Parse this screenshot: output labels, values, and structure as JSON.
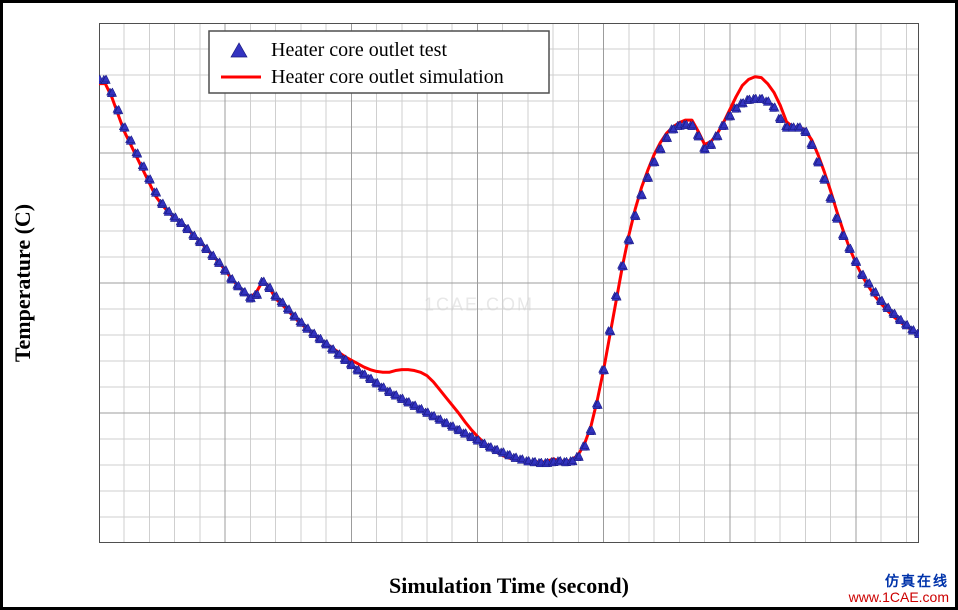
{
  "chart": {
    "type": "line",
    "xlabel": "Simulation Time (second)",
    "ylabel": "Temperature (C)",
    "label_fontsize": 22,
    "label_fontweight": "bold",
    "tick_fontsize": 20,
    "xlim": [
      0,
      650
    ],
    "ylim": [
      60,
      120
    ],
    "xtick_major": [
      0,
      100,
      200,
      300,
      400,
      500,
      600
    ],
    "xtick_minor_step": 20,
    "ytick_major": [
      60,
      75,
      90,
      105,
      120
    ],
    "ytick_minor_step": 3,
    "background_color": "#ffffff",
    "grid_major_color": "#9c9c9c",
    "grid_minor_color": "#cfcfcf",
    "plot_border_color": "#4f4f4f",
    "plot_border_width": 2,
    "legend": {
      "position": "top",
      "border_color": "#4f4f4f",
      "background_color": "#ffffff",
      "items": [
        {
          "label": "Heater core outlet test",
          "marker": "triangle",
          "color": "#3333c0",
          "line": "none"
        },
        {
          "label": "Heater core outlet simulation",
          "marker": "none",
          "color": "#ff0000",
          "line": "solid",
          "line_width": 3
        }
      ]
    },
    "series": [
      {
        "name": "Heater core outlet simulation",
        "type": "line",
        "color": "#ff0000",
        "line_width": 3,
        "x": [
          0,
          5,
          10,
          15,
          20,
          25,
          30,
          35,
          40,
          45,
          50,
          55,
          60,
          65,
          70,
          75,
          80,
          85,
          90,
          95,
          100,
          105,
          110,
          115,
          120,
          125,
          130,
          135,
          140,
          145,
          150,
          155,
          160,
          165,
          170,
          175,
          180,
          185,
          190,
          195,
          200,
          205,
          210,
          215,
          220,
          225,
          230,
          235,
          240,
          245,
          250,
          255,
          260,
          265,
          270,
          275,
          280,
          285,
          290,
          295,
          300,
          305,
          310,
          315,
          320,
          325,
          330,
          335,
          340,
          345,
          350,
          355,
          360,
          365,
          370,
          375,
          380,
          385,
          390,
          395,
          400,
          405,
          410,
          415,
          420,
          425,
          430,
          435,
          440,
          445,
          450,
          455,
          460,
          465,
          470,
          475,
          480,
          485,
          490,
          495,
          500,
          505,
          510,
          515,
          520,
          525,
          530,
          535,
          540,
          545,
          550,
          555,
          560,
          565,
          570,
          575,
          580,
          585,
          590,
          595,
          600,
          605,
          610,
          615,
          620,
          625,
          630,
          635,
          640,
          645,
          650
        ],
        "y": [
          113,
          113,
          111.5,
          109.5,
          107.5,
          106,
          104.5,
          103,
          101.5,
          100,
          99,
          98.2,
          97.5,
          97,
          96.3,
          95.5,
          94.8,
          94,
          93.2,
          92.4,
          91.5,
          90.5,
          89.7,
          89,
          88.3,
          89,
          90.3,
          89.5,
          88.2,
          87.5,
          86.8,
          86,
          85.3,
          84.7,
          84,
          83.5,
          83,
          82.5,
          82,
          81.5,
          81.1,
          80.7,
          80.3,
          80,
          79.8,
          79.7,
          79.7,
          79.9,
          80,
          80,
          79.9,
          79.7,
          79.3,
          78.6,
          77.7,
          76.8,
          75.9,
          75,
          74,
          73.1,
          72.3,
          71.6,
          71,
          70.5,
          70.1,
          69.8,
          69.6,
          69.5,
          69.4,
          69.4,
          69.3,
          69.4,
          69.7,
          69.5,
          69.4,
          69.6,
          70.2,
          71.5,
          73.5,
          76.5,
          80,
          84,
          88,
          92,
          95.5,
          98.5,
          101,
          103,
          104.8,
          106.2,
          107.3,
          108,
          108.5,
          108.8,
          108.8,
          107.5,
          106,
          106.3,
          107.2,
          108.5,
          110,
          111.5,
          112.8,
          113.5,
          113.8,
          113.7,
          113,
          112,
          110.5,
          108.6,
          108,
          108,
          107.6,
          106.5,
          104.8,
          102.8,
          100.6,
          98.2,
          96,
          94,
          92.3,
          90.8,
          89.6,
          88.5,
          87.6,
          86.8,
          86.1,
          85.5,
          85,
          84.5,
          84.2
        ]
      },
      {
        "name": "Heater core outlet test",
        "type": "scatter",
        "marker": "triangle",
        "marker_size": 7,
        "color": "#3333c0",
        "fill_color": "#3333c0",
        "stroke_color": "#1a1a80",
        "x": [
          0,
          5,
          10,
          15,
          20,
          25,
          30,
          35,
          40,
          45,
          50,
          55,
          60,
          65,
          70,
          75,
          80,
          85,
          90,
          95,
          100,
          105,
          110,
          115,
          120,
          125,
          130,
          135,
          140,
          145,
          150,
          155,
          160,
          165,
          170,
          175,
          180,
          185,
          190,
          195,
          200,
          205,
          210,
          215,
          220,
          225,
          230,
          235,
          240,
          245,
          250,
          255,
          260,
          265,
          270,
          275,
          280,
          285,
          290,
          295,
          300,
          305,
          310,
          315,
          320,
          325,
          330,
          335,
          340,
          345,
          350,
          355,
          360,
          365,
          370,
          375,
          380,
          385,
          390,
          395,
          400,
          405,
          410,
          415,
          420,
          425,
          430,
          435,
          440,
          445,
          450,
          455,
          460,
          465,
          470,
          475,
          480,
          485,
          490,
          495,
          500,
          505,
          510,
          515,
          520,
          525,
          530,
          535,
          540,
          545,
          550,
          555,
          560,
          565,
          570,
          575,
          580,
          585,
          590,
          595,
          600,
          605,
          610,
          615,
          620,
          625,
          630,
          635,
          640,
          645,
          650
        ],
        "y": [
          113.5,
          113.5,
          112,
          110,
          108,
          106.5,
          105,
          103.5,
          102,
          100.5,
          99.2,
          98.3,
          97.6,
          97,
          96.3,
          95.5,
          94.8,
          94,
          93.2,
          92.4,
          91.5,
          90.5,
          89.7,
          89,
          88.3,
          88.7,
          90.2,
          89.5,
          88.5,
          87.8,
          87,
          86.2,
          85.5,
          84.8,
          84.2,
          83.6,
          83,
          82.4,
          81.8,
          81.2,
          80.6,
          80,
          79.5,
          79,
          78.5,
          78,
          77.5,
          77.1,
          76.7,
          76.3,
          75.9,
          75.5,
          75.1,
          74.7,
          74.3,
          73.9,
          73.5,
          73.1,
          72.7,
          72.3,
          71.9,
          71.5,
          71.1,
          70.8,
          70.5,
          70.2,
          69.9,
          69.7,
          69.5,
          69.4,
          69.3,
          69.3,
          69.4,
          69.5,
          69.4,
          69.5,
          70,
          71.2,
          73,
          76,
          80,
          84.5,
          88.5,
          92,
          95,
          97.8,
          100.2,
          102.2,
          104,
          105.5,
          106.8,
          107.8,
          108.2,
          108.3,
          108.2,
          107,
          105.5,
          106,
          107,
          108.2,
          109.3,
          110.2,
          110.8,
          111.2,
          111.3,
          111.3,
          111,
          110.3,
          109,
          108,
          108,
          108,
          107.5,
          106,
          104,
          102,
          99.8,
          97.5,
          95.5,
          94,
          92.5,
          91,
          90,
          89,
          88,
          87.2,
          86.5,
          85.8,
          85.2,
          84.6,
          84.2
        ]
      }
    ]
  },
  "watermark": {
    "center": "1CAE.COM",
    "line1": "仿真在线",
    "line2": "www.1CAE.com"
  }
}
